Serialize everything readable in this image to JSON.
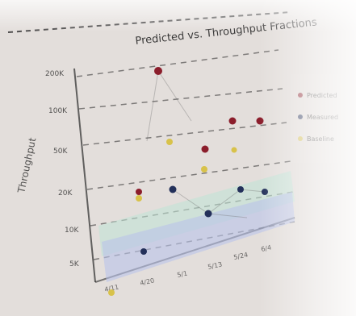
{
  "photo": {
    "subject": "photographed chart on a whiteboard-like screen",
    "colors": {
      "background": "#dcd8d4",
      "board": "#e6e2de",
      "ink": "#2a2a2a",
      "band_green": "#bfe3d6",
      "band_blue": "#b9c3ea",
      "point_red": "#8b1d2b",
      "point_navy": "#23305a",
      "point_yellow": "#d8c24a"
    }
  },
  "chart": {
    "title": "Predicted vs. Throughput Fractions",
    "y_ticks": [
      "200K",
      "100K",
      "50K",
      "20K",
      "10K",
      "5K"
    ],
    "x_ticks": [
      "4/11",
      "4/20",
      "5/1",
      "5/13",
      "5/24",
      "6/4"
    ],
    "y_label": "Throughput",
    "legend": [
      {
        "label": "Predicted",
        "color": "#8b1d2b"
      },
      {
        "label": "Measured",
        "color": "#23305a"
      },
      {
        "label": "Baseline",
        "color": "#d8c24a"
      }
    ]
  },
  "chart_data": {
    "type": "scatter",
    "title": "Predicted vs. Throughput Fractions",
    "xlabel": "",
    "ylabel": "Throughput",
    "series": [
      {
        "name": "Predicted",
        "points": [
          [
            0.25,
            4.2
          ],
          [
            0.6,
            1.9
          ],
          [
            0.76,
            1.9
          ],
          [
            0.86,
            1.9
          ],
          [
            0.55,
            2.4
          ]
        ]
      },
      {
        "name": "Measured",
        "points": [
          [
            0.07,
            4.9
          ],
          [
            0.27,
            5.1
          ],
          [
            0.44,
            5.3
          ],
          [
            0.63,
            5.1
          ],
          [
            0.78,
            5.0
          ]
        ]
      },
      {
        "name": "Baseline",
        "points": [
          [
            0.05,
            4.8
          ],
          [
            0.22,
            3.7
          ],
          [
            0.36,
            4.2
          ],
          [
            0.55,
            3.1
          ],
          [
            0.0,
            7.5
          ]
        ]
      }
    ],
    "xlim": [
      0,
      1
    ],
    "ylim": [
      0,
      8
    ]
  }
}
